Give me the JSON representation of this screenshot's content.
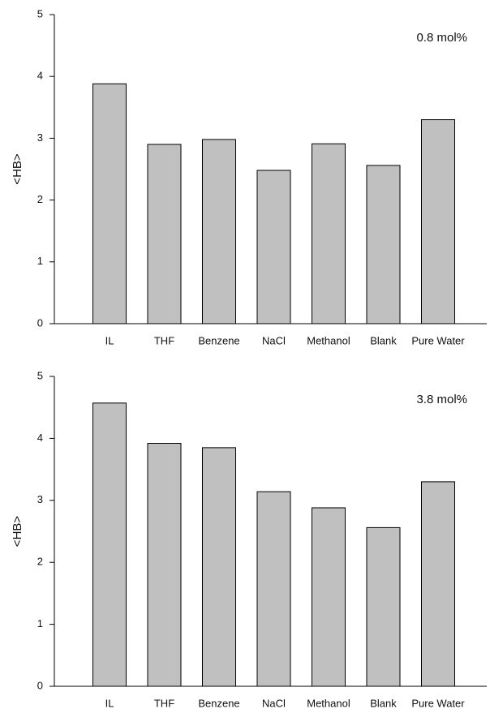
{
  "chart_data": [
    {
      "type": "bar",
      "annotation": "0.8 mol%",
      "y_label": "<HB>",
      "categories": [
        "IL",
        "THF",
        "Benzene",
        "NaCl",
        "Methanol",
        "Blank",
        "Pure Water"
      ],
      "values": [
        3.88,
        2.9,
        2.98,
        2.48,
        2.91,
        2.56,
        3.3
      ],
      "color": "#c0c0c0",
      "ylim": [
        0,
        5
      ],
      "yticks": [
        0,
        1,
        2,
        3,
        4,
        5
      ]
    },
    {
      "type": "bar",
      "annotation": "3.8 mol%",
      "y_label": "<HB>",
      "categories": [
        "IL",
        "THF",
        "Benzene",
        "NaCl",
        "Methanol",
        "Blank",
        "Pure Water"
      ],
      "values": [
        4.57,
        3.92,
        3.85,
        3.14,
        2.88,
        2.56,
        3.3
      ],
      "color": "#c0c0c0",
      "ylim": [
        0,
        5
      ],
      "yticks": [
        0,
        1,
        2,
        3,
        4,
        5
      ]
    }
  ]
}
